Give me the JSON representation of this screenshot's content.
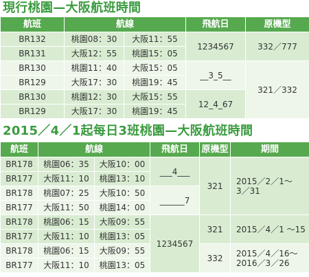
{
  "schedule_current": {
    "title": "現行桃園—大阪航班時間",
    "header": {
      "flight": "航班",
      "route": "航線",
      "days": "飛航日",
      "aircraft": "原機型"
    },
    "rows": [
      {
        "flight": "BR132",
        "depart": "桃園08：30",
        "arrive": "大阪11：55"
      },
      {
        "flight": "BR131",
        "depart": "大阪12：55",
        "arrive": "桃園15：05"
      },
      {
        "flight": "BR130",
        "depart": "桃園11：40",
        "arrive": "大阪15：05"
      },
      {
        "flight": "BR129",
        "depart": "大阪17：30",
        "arrive": "桃園19：45"
      },
      {
        "flight": "BR130",
        "depart": "桃園12：30",
        "arrive": "大阪15：55"
      },
      {
        "flight": "BR129",
        "depart": "大阪17：30",
        "arrive": "桃園19：45"
      }
    ],
    "days": [
      "1234567",
      "__3_5__",
      "12_4_67"
    ],
    "aircraft": [
      "332／777",
      "321／332"
    ]
  },
  "schedule_new": {
    "title": "2015／4／1起每日3班桃園—大阪航班時間",
    "header": {
      "flight": "航班",
      "route": "航線",
      "days": "飛航日",
      "aircraft": "原機型",
      "period": "期間"
    },
    "rows": [
      {
        "flight": "BR178",
        "depart": "桃園06：35",
        "arrive": "大阪10：00"
      },
      {
        "flight": "BR177",
        "depart": "大阪11：10",
        "arrive": "桃園13：10"
      },
      {
        "flight": "BR178",
        "depart": "桃園07：25",
        "arrive": "大阪10：50"
      },
      {
        "flight": "BR177",
        "depart": "大阪11：50",
        "arrive": "桃園14：00"
      },
      {
        "flight": "BR178",
        "depart": "桃園06：15",
        "arrive": "大阪09：55"
      },
      {
        "flight": "BR177",
        "depart": "大阪11：10",
        "arrive": "桃園13：05"
      },
      {
        "flight": "BR178",
        "depart": "桃園06：15",
        "arrive": "大阪09：55"
      },
      {
        "flight": "BR177",
        "depart": "大阪11：10",
        "arrive": "桃園13：05"
      }
    ],
    "days": [
      "___4___",
      "______7",
      "1234567"
    ],
    "aircraft": [
      "321",
      "321",
      "332"
    ],
    "periods": [
      [
        "2015／2／1～",
        "3／31"
      ],
      [
        "2015／4／1 ～15"
      ],
      [
        "2015／4／16～",
        "2016／3／26"
      ]
    ]
  }
}
